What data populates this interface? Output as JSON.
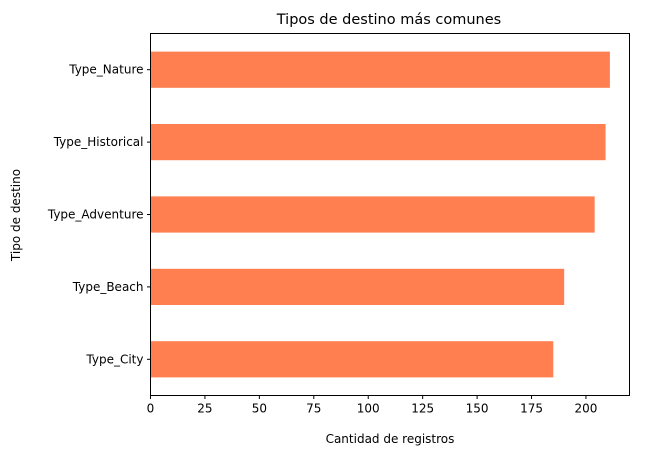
{
  "chart_data": {
    "type": "bar",
    "orientation": "horizontal",
    "title": "Tipos de destino más comunes",
    "xlabel": "Cantidad de registros",
    "ylabel": "Tipo de destino",
    "categories": [
      "Type_Nature",
      "Type_Historical",
      "Type_Adventure",
      "Type_Beach",
      "Type_City"
    ],
    "values": [
      211,
      209,
      204,
      190,
      185
    ],
    "xlim": [
      0,
      220
    ],
    "xticks": [
      0,
      25,
      50,
      75,
      100,
      125,
      150,
      175,
      200
    ],
    "bar_color": "#ff7f50",
    "grid": false,
    "legend": false
  }
}
